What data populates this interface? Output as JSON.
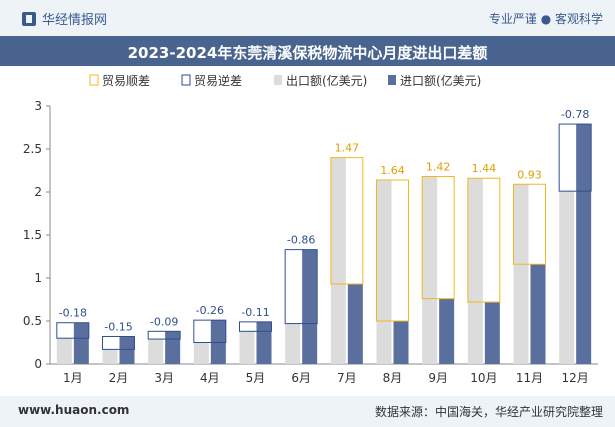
{
  "header": {
    "brand": "华经情报网",
    "tagline": "专业严谨 ● 客观科学"
  },
  "chart_data": {
    "type": "bar",
    "title": "2023-2024年东莞清溪保税物流中心月度进出口差额",
    "categories": [
      "1月",
      "2月",
      "3月",
      "4月",
      "5月",
      "6月",
      "7月",
      "8月",
      "9月",
      "10月",
      "11月",
      "12月"
    ],
    "series": [
      {
        "name": "出口额(亿美元)",
        "values": [
          0.3,
          0.17,
          0.29,
          0.25,
          0.38,
          0.47,
          2.4,
          2.14,
          2.18,
          2.16,
          2.09,
          2.01
        ]
      },
      {
        "name": "进口额(亿美元)",
        "values": [
          0.48,
          0.32,
          0.38,
          0.51,
          0.49,
          1.33,
          0.93,
          0.5,
          0.76,
          0.72,
          1.16,
          2.79
        ]
      }
    ],
    "balance_labels": [
      "-0.18",
      "-0.15",
      "-0.09",
      "-0.26",
      "-0.11",
      "-0.86",
      "1.47",
      "1.64",
      "1.42",
      "1.44",
      "0.93",
      "-0.78"
    ],
    "legend": [
      "贸易顺差",
      "贸易逆差",
      "出口额(亿美元)",
      "进口额(亿美元)"
    ],
    "yticks": [
      "0",
      "0.5",
      "1",
      "1.5",
      "2",
      "2.5",
      "3"
    ],
    "ylim": [
      0,
      3
    ],
    "legend_position": "top",
    "colors": {
      "export": "#dcdcdc",
      "import": "#5a6f9e",
      "surplus": "#f0b820",
      "deficit": "#2f4f8f",
      "surplus_text": "#e0a000",
      "deficit_text": "#2f4f8f"
    }
  },
  "footer": {
    "website": "www.huaon.com",
    "source": "数据来源：中国海关，华经产业研究院整理"
  }
}
